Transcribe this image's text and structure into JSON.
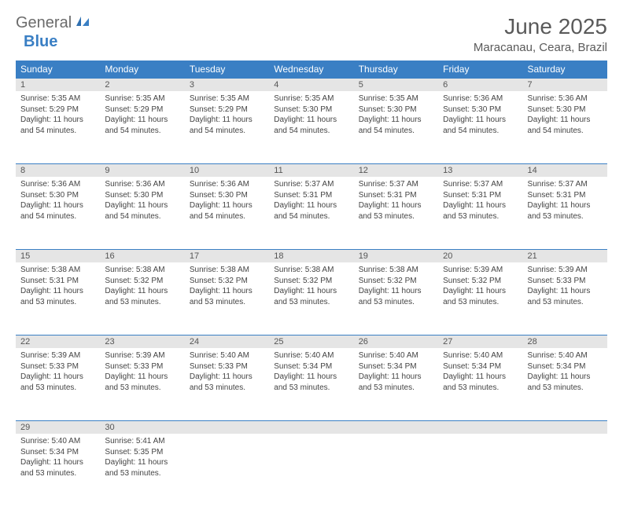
{
  "logo": {
    "text1": "General",
    "text2": "Blue"
  },
  "title": "June 2025",
  "location": "Maracanau, Ceara, Brazil",
  "colors": {
    "header_bg": "#3a7fc4",
    "header_text": "#ffffff",
    "daynum_bg": "#e5e5e5",
    "border": "#3a7fc4",
    "text": "#444444"
  },
  "day_headers": [
    "Sunday",
    "Monday",
    "Tuesday",
    "Wednesday",
    "Thursday",
    "Friday",
    "Saturday"
  ],
  "weeks": [
    [
      {
        "n": "1",
        "sunrise": "Sunrise: 5:35 AM",
        "sunset": "Sunset: 5:29 PM",
        "daylight": "Daylight: 11 hours and 54 minutes."
      },
      {
        "n": "2",
        "sunrise": "Sunrise: 5:35 AM",
        "sunset": "Sunset: 5:29 PM",
        "daylight": "Daylight: 11 hours and 54 minutes."
      },
      {
        "n": "3",
        "sunrise": "Sunrise: 5:35 AM",
        "sunset": "Sunset: 5:29 PM",
        "daylight": "Daylight: 11 hours and 54 minutes."
      },
      {
        "n": "4",
        "sunrise": "Sunrise: 5:35 AM",
        "sunset": "Sunset: 5:30 PM",
        "daylight": "Daylight: 11 hours and 54 minutes."
      },
      {
        "n": "5",
        "sunrise": "Sunrise: 5:35 AM",
        "sunset": "Sunset: 5:30 PM",
        "daylight": "Daylight: 11 hours and 54 minutes."
      },
      {
        "n": "6",
        "sunrise": "Sunrise: 5:36 AM",
        "sunset": "Sunset: 5:30 PM",
        "daylight": "Daylight: 11 hours and 54 minutes."
      },
      {
        "n": "7",
        "sunrise": "Sunrise: 5:36 AM",
        "sunset": "Sunset: 5:30 PM",
        "daylight": "Daylight: 11 hours and 54 minutes."
      }
    ],
    [
      {
        "n": "8",
        "sunrise": "Sunrise: 5:36 AM",
        "sunset": "Sunset: 5:30 PM",
        "daylight": "Daylight: 11 hours and 54 minutes."
      },
      {
        "n": "9",
        "sunrise": "Sunrise: 5:36 AM",
        "sunset": "Sunset: 5:30 PM",
        "daylight": "Daylight: 11 hours and 54 minutes."
      },
      {
        "n": "10",
        "sunrise": "Sunrise: 5:36 AM",
        "sunset": "Sunset: 5:30 PM",
        "daylight": "Daylight: 11 hours and 54 minutes."
      },
      {
        "n": "11",
        "sunrise": "Sunrise: 5:37 AM",
        "sunset": "Sunset: 5:31 PM",
        "daylight": "Daylight: 11 hours and 54 minutes."
      },
      {
        "n": "12",
        "sunrise": "Sunrise: 5:37 AM",
        "sunset": "Sunset: 5:31 PM",
        "daylight": "Daylight: 11 hours and 53 minutes."
      },
      {
        "n": "13",
        "sunrise": "Sunrise: 5:37 AM",
        "sunset": "Sunset: 5:31 PM",
        "daylight": "Daylight: 11 hours and 53 minutes."
      },
      {
        "n": "14",
        "sunrise": "Sunrise: 5:37 AM",
        "sunset": "Sunset: 5:31 PM",
        "daylight": "Daylight: 11 hours and 53 minutes."
      }
    ],
    [
      {
        "n": "15",
        "sunrise": "Sunrise: 5:38 AM",
        "sunset": "Sunset: 5:31 PM",
        "daylight": "Daylight: 11 hours and 53 minutes."
      },
      {
        "n": "16",
        "sunrise": "Sunrise: 5:38 AM",
        "sunset": "Sunset: 5:32 PM",
        "daylight": "Daylight: 11 hours and 53 minutes."
      },
      {
        "n": "17",
        "sunrise": "Sunrise: 5:38 AM",
        "sunset": "Sunset: 5:32 PM",
        "daylight": "Daylight: 11 hours and 53 minutes."
      },
      {
        "n": "18",
        "sunrise": "Sunrise: 5:38 AM",
        "sunset": "Sunset: 5:32 PM",
        "daylight": "Daylight: 11 hours and 53 minutes."
      },
      {
        "n": "19",
        "sunrise": "Sunrise: 5:38 AM",
        "sunset": "Sunset: 5:32 PM",
        "daylight": "Daylight: 11 hours and 53 minutes."
      },
      {
        "n": "20",
        "sunrise": "Sunrise: 5:39 AM",
        "sunset": "Sunset: 5:32 PM",
        "daylight": "Daylight: 11 hours and 53 minutes."
      },
      {
        "n": "21",
        "sunrise": "Sunrise: 5:39 AM",
        "sunset": "Sunset: 5:33 PM",
        "daylight": "Daylight: 11 hours and 53 minutes."
      }
    ],
    [
      {
        "n": "22",
        "sunrise": "Sunrise: 5:39 AM",
        "sunset": "Sunset: 5:33 PM",
        "daylight": "Daylight: 11 hours and 53 minutes."
      },
      {
        "n": "23",
        "sunrise": "Sunrise: 5:39 AM",
        "sunset": "Sunset: 5:33 PM",
        "daylight": "Daylight: 11 hours and 53 minutes."
      },
      {
        "n": "24",
        "sunrise": "Sunrise: 5:40 AM",
        "sunset": "Sunset: 5:33 PM",
        "daylight": "Daylight: 11 hours and 53 minutes."
      },
      {
        "n": "25",
        "sunrise": "Sunrise: 5:40 AM",
        "sunset": "Sunset: 5:34 PM",
        "daylight": "Daylight: 11 hours and 53 minutes."
      },
      {
        "n": "26",
        "sunrise": "Sunrise: 5:40 AM",
        "sunset": "Sunset: 5:34 PM",
        "daylight": "Daylight: 11 hours and 53 minutes."
      },
      {
        "n": "27",
        "sunrise": "Sunrise: 5:40 AM",
        "sunset": "Sunset: 5:34 PM",
        "daylight": "Daylight: 11 hours and 53 minutes."
      },
      {
        "n": "28",
        "sunrise": "Sunrise: 5:40 AM",
        "sunset": "Sunset: 5:34 PM",
        "daylight": "Daylight: 11 hours and 53 minutes."
      }
    ],
    [
      {
        "n": "29",
        "sunrise": "Sunrise: 5:40 AM",
        "sunset": "Sunset: 5:34 PM",
        "daylight": "Daylight: 11 hours and 53 minutes."
      },
      {
        "n": "30",
        "sunrise": "Sunrise: 5:41 AM",
        "sunset": "Sunset: 5:35 PM",
        "daylight": "Daylight: 11 hours and 53 minutes."
      },
      null,
      null,
      null,
      null,
      null
    ]
  ]
}
